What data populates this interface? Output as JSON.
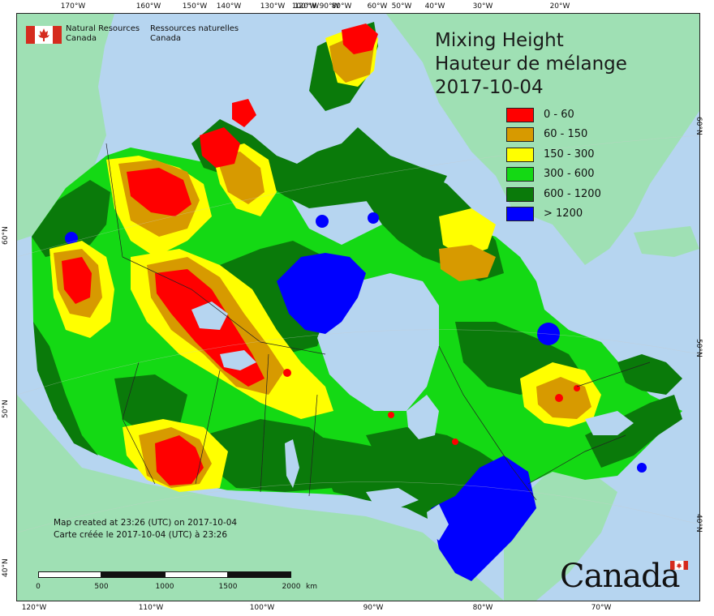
{
  "map": {
    "title_en": "Mixing Height",
    "title_fr": "Hauteur de mélange",
    "date": "2017-10-04",
    "agency_en_line1": "Natural Resources",
    "agency_en_line2": "Canada",
    "agency_fr_line1": "Ressources naturelles",
    "agency_fr_line2": "Canada",
    "created_en": "Map created at 23:26 (UTC) on 2017-10-04",
    "created_fr": "Carte créée le 2017-10-04 (UTC) à 23:26",
    "wordmark": "Canada"
  },
  "legend": [
    {
      "label": "0 - 60",
      "color": "#ff0000"
    },
    {
      "label": "60 - 150",
      "color": "#d79a00"
    },
    {
      "label": "150 - 300",
      "color": "#ffff00"
    },
    {
      "label": "300 - 600",
      "color": "#14d914"
    },
    {
      "label": "600 - 1200",
      "color": "#0a7a0a"
    },
    {
      "label": "> 1200",
      "color": "#0000ff"
    }
  ],
  "colors": {
    "ocean": "#b6d5f0",
    "foreign_land": "#9fe0b4",
    "lake": "#b6d5f0"
  },
  "graticule": {
    "top": [
      "170°W",
      "160°W",
      "150°W",
      "140°W",
      "130°W",
      "120°W",
      "100°W",
      "90°W",
      "80°W",
      "60°W",
      "50°W",
      "40°W",
      "30°W",
      "20°W"
    ],
    "bottom": [
      "120°W",
      "110°W",
      "100°W",
      "90°W",
      "80°W",
      "70°W"
    ],
    "left": [
      "60°N",
      "50°N",
      "40°N"
    ],
    "right": [
      "60°N",
      "50°N",
      "40°N"
    ]
  },
  "scale": {
    "labels": [
      "0",
      "500",
      "1000",
      "1500",
      "2000"
    ],
    "unit": "km"
  }
}
